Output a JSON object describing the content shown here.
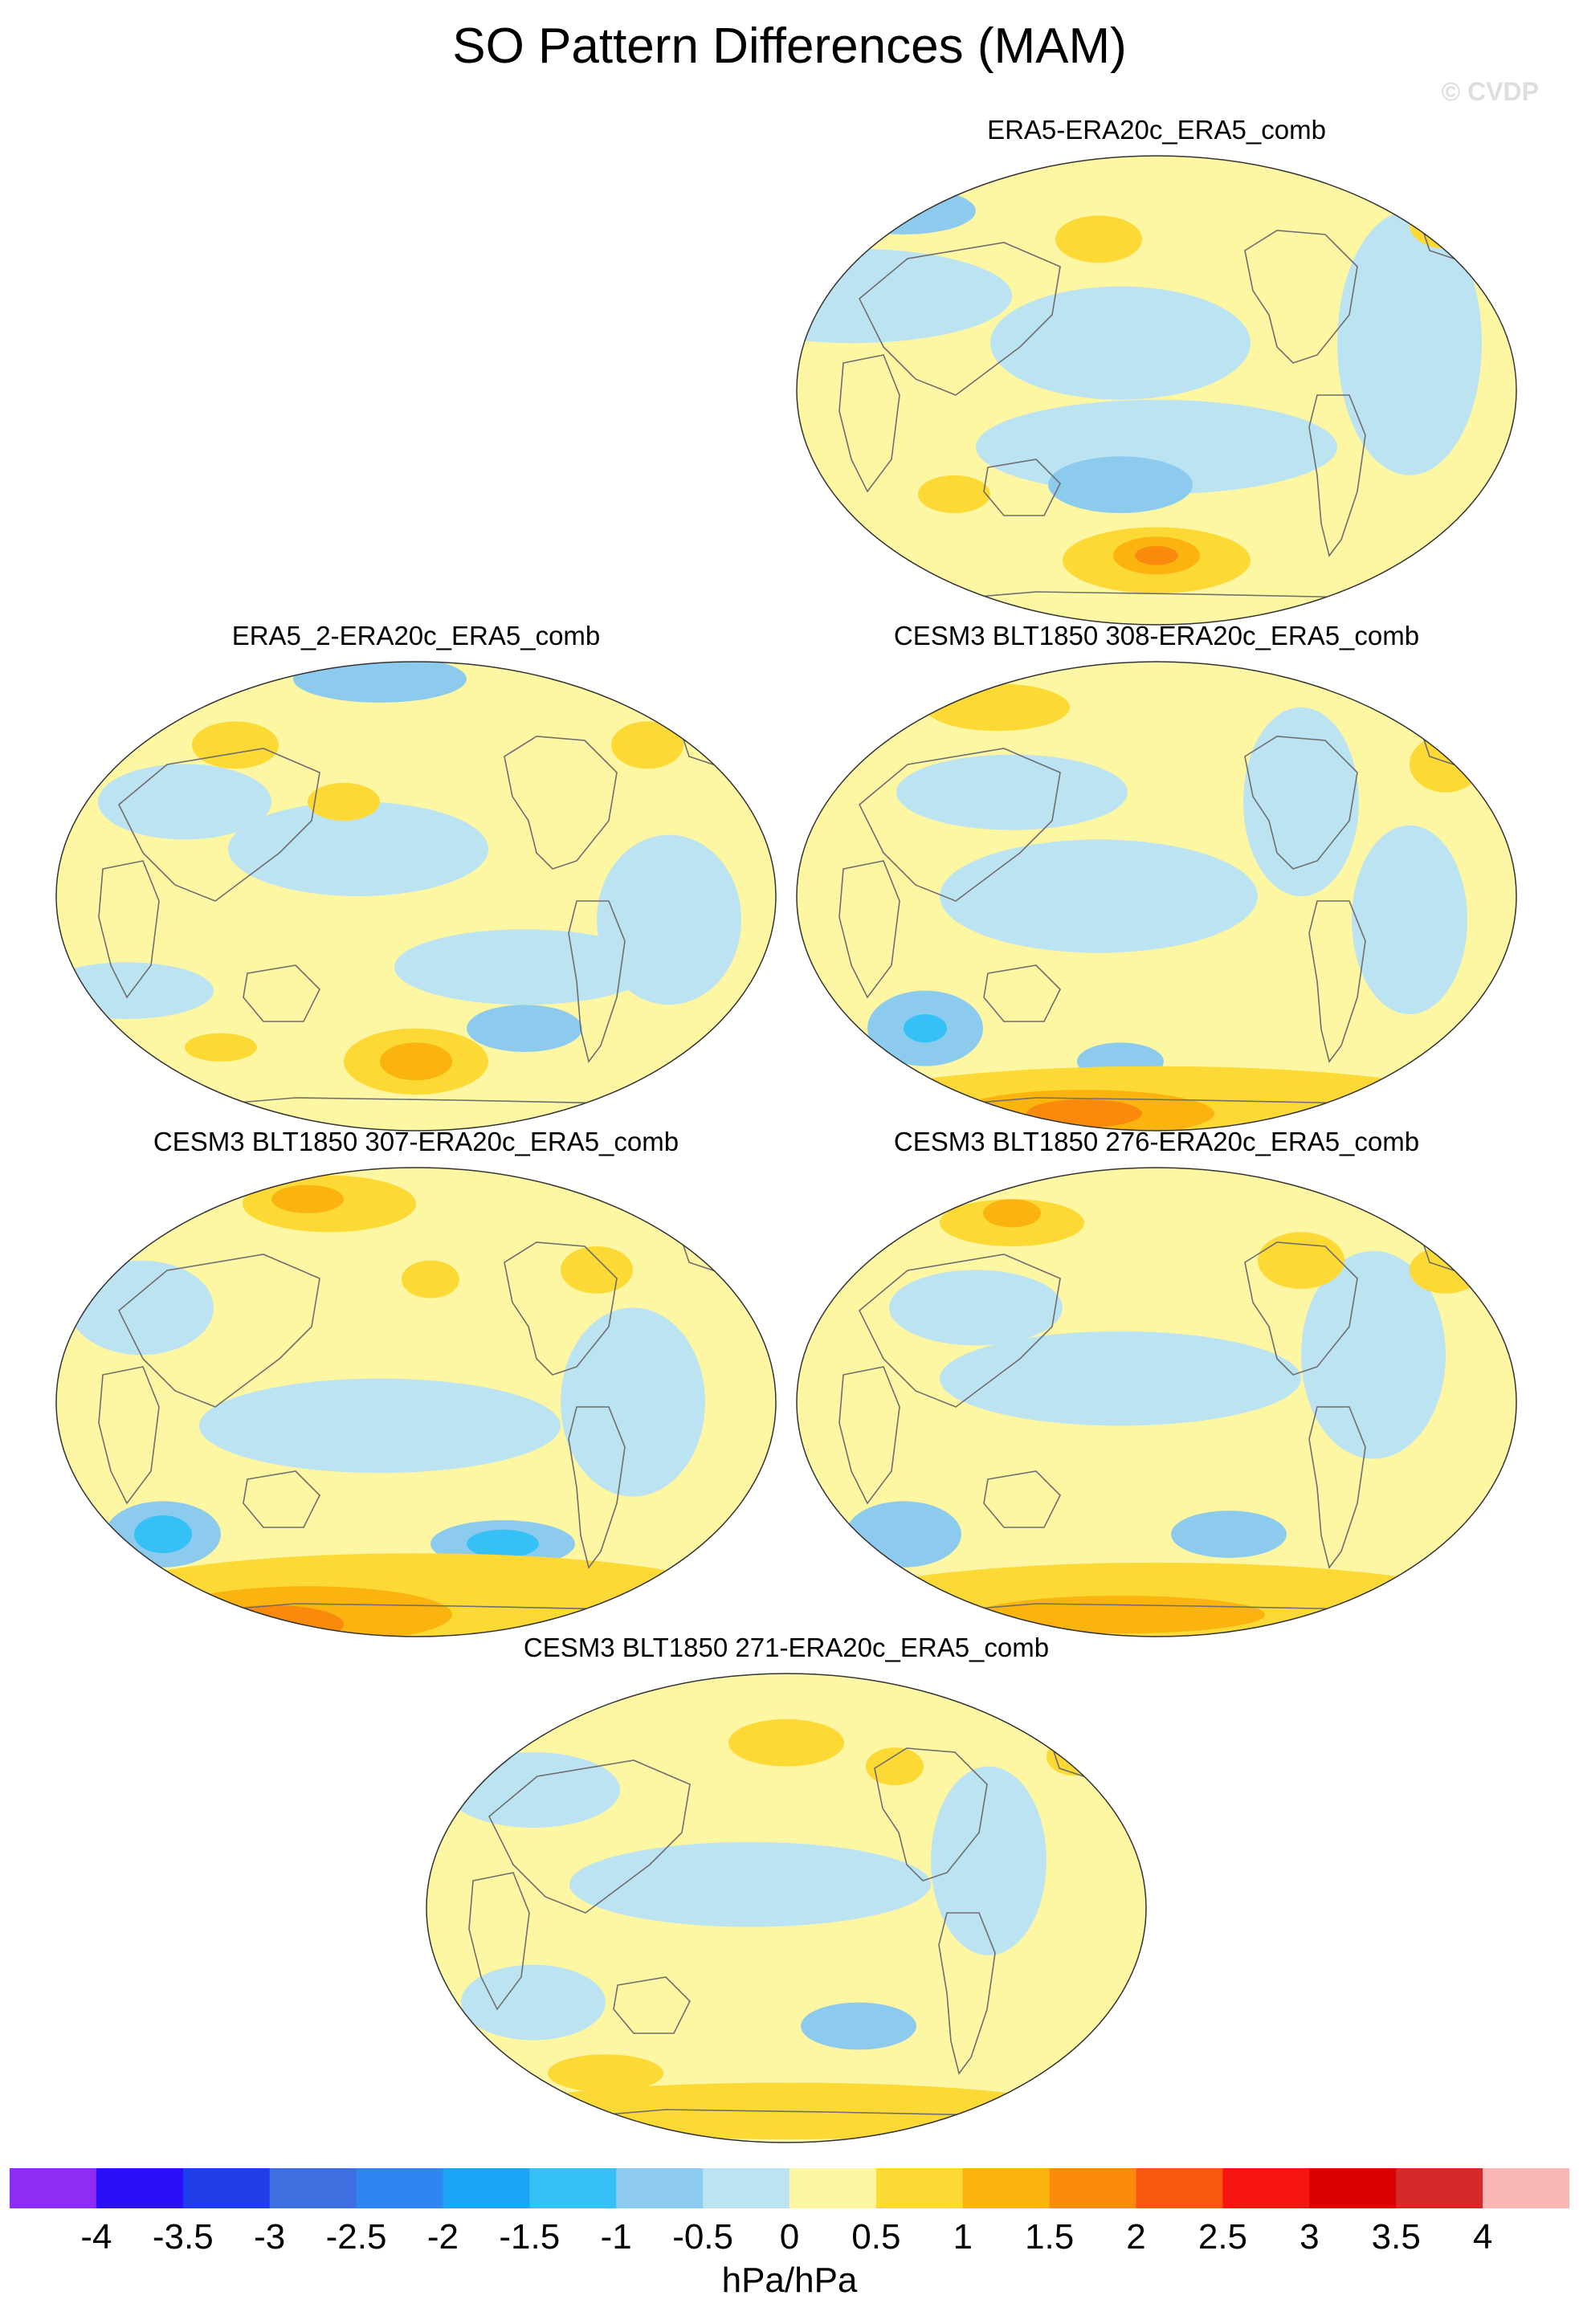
{
  "title": "SO Pattern Differences (MAM)",
  "watermark": "© CVDP",
  "panels": [
    {
      "id": "p1",
      "title": "ERA5-ERA20c_ERA5_comb"
    },
    {
      "id": "p2",
      "title": "ERA5_2-ERA20c_ERA5_comb"
    },
    {
      "id": "p3",
      "title": "CESM3 BLT1850 308-ERA20c_ERA5_comb"
    },
    {
      "id": "p4",
      "title": "CESM3 BLT1850 307-ERA20c_ERA5_comb"
    },
    {
      "id": "p5",
      "title": "CESM3 BLT1850 276-ERA20c_ERA5_comb"
    },
    {
      "id": "p6",
      "title": "CESM3 BLT1850 271-ERA20c_ERA5_comb"
    }
  ],
  "colorbar": {
    "units": "hPa/hPa",
    "levels": [
      "-4",
      "-3.5",
      "-3",
      "-2.5",
      "-2",
      "-1.5",
      "-1",
      "-0.5",
      "0",
      "0.5",
      "1",
      "1.5",
      "2",
      "2.5",
      "3",
      "3.5",
      "4"
    ],
    "colors": [
      "#8d2cf5",
      "#2d0ef8",
      "#1f3de8",
      "#3d6fe0",
      "#2f86f0",
      "#1aa6f4",
      "#35c1f5",
      "#8dcbee",
      "#bce3f1",
      "#fdf6a3",
      "#fcd934",
      "#fbb40f",
      "#f98a0b",
      "#f6580f",
      "#f71511",
      "#d80000",
      "#d42a2a",
      "#fbb7b5"
    ]
  }
}
